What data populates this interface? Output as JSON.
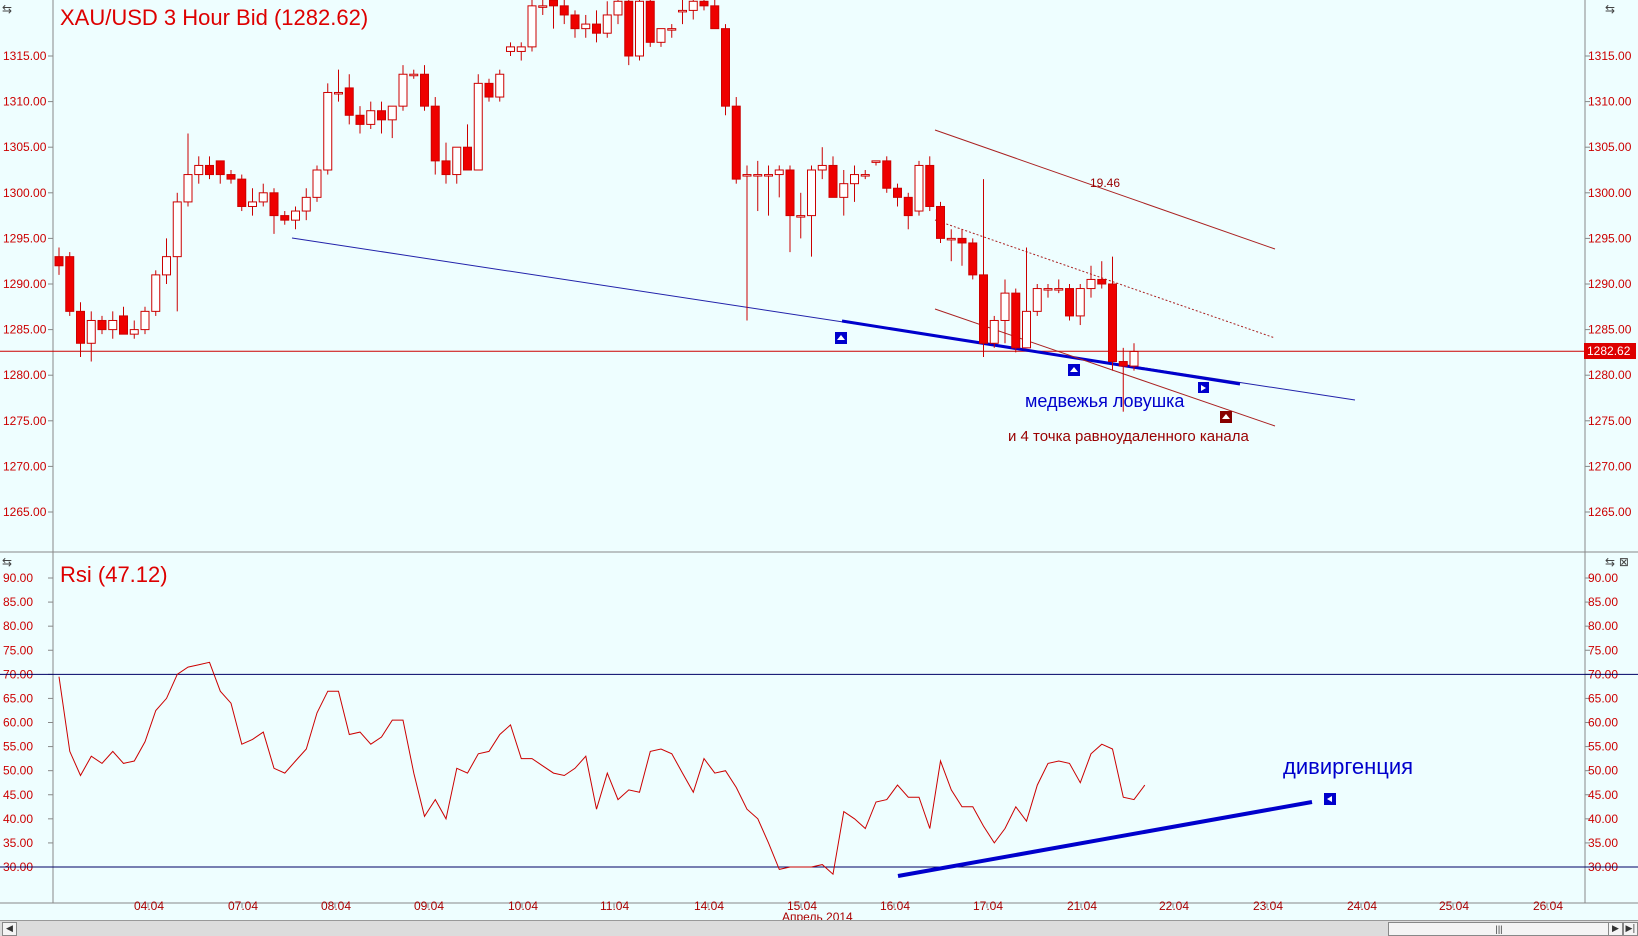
{
  "price_panel": {
    "title": "XAU/USD 3 Hour Bid (1282.62)",
    "current_price_label": "1282.62",
    "y_ticks": [
      "1315.00",
      "1310.00",
      "1305.00",
      "1300.00",
      "1295.00",
      "1290.00",
      "1285.00",
      "1280.00",
      "1275.00",
      "1270.00",
      "1265.00"
    ],
    "annotation_bear_trap": "медвежья ловушка",
    "annotation_channel": "и 4 точка равноудаленного канала",
    "annotation_width": "19.46"
  },
  "rsi_panel": {
    "title": "Rsi (47.12)",
    "y_ticks": [
      "90.00",
      "85.00",
      "80.00",
      "75.00",
      "70.00",
      "65.00",
      "60.00",
      "55.00",
      "50.00",
      "45.00",
      "40.00",
      "35.00",
      "30.00"
    ],
    "annotation_divergence": "дивиргенция"
  },
  "x_axis": {
    "dates": [
      "04.04",
      "07.04",
      "08.04",
      "09.04",
      "10.04",
      "11.04",
      "14.04",
      "15.04",
      "16.04",
      "17.04",
      "21.04",
      "22.04",
      "23.04",
      "24.04",
      "25.04",
      "26.04"
    ],
    "month_label": "Апрель 2014"
  },
  "colors": {
    "background": "#eefeff",
    "bear_candle": "#ee0000",
    "bull_candle": "#ffffff",
    "candle_outline": "#cc0000",
    "rsi_line": "#cc0000",
    "trend_blue": "#0000cc",
    "channel": "#aa2222"
  },
  "chart_data": [
    {
      "type": "candlestick",
      "title": "XAU/USD 3 Hour Bid (1282.62)",
      "ylim": [
        1261,
        1322
      ],
      "current_price": 1282.62,
      "candles": [
        {
          "o": 1293.0,
          "h": 1294.0,
          "l": 1291.0,
          "c": 1292.0
        },
        {
          "o": 1293.0,
          "h": 1293.5,
          "l": 1286.5,
          "c": 1287.0
        },
        {
          "o": 1287.0,
          "h": 1288.0,
          "l": 1282.0,
          "c": 1283.5
        },
        {
          "o": 1283.5,
          "h": 1287.0,
          "l": 1281.5,
          "c": 1286.0
        },
        {
          "o": 1286.0,
          "h": 1286.5,
          "l": 1284.5,
          "c": 1285.0
        },
        {
          "o": 1285.0,
          "h": 1287.0,
          "l": 1284.0,
          "c": 1286.0
        },
        {
          "o": 1286.5,
          "h": 1287.5,
          "l": 1284.5,
          "c": 1284.5
        },
        {
          "o": 1284.5,
          "h": 1286.0,
          "l": 1284.0,
          "c": 1285.0
        },
        {
          "o": 1285.0,
          "h": 1287.5,
          "l": 1284.5,
          "c": 1287.0
        },
        {
          "o": 1287.0,
          "h": 1291.5,
          "l": 1286.5,
          "c": 1291.0
        },
        {
          "o": 1291.0,
          "h": 1295.0,
          "l": 1290.0,
          "c": 1293.0
        },
        {
          "o": 1293.0,
          "h": 1300.0,
          "l": 1287.0,
          "c": 1299.0
        },
        {
          "o": 1299.0,
          "h": 1306.5,
          "l": 1298.5,
          "c": 1302.0
        },
        {
          "o": 1302.0,
          "h": 1304.0,
          "l": 1301.0,
          "c": 1303.0
        },
        {
          "o": 1303.0,
          "h": 1304.0,
          "l": 1301.5,
          "c": 1302.0
        },
        {
          "o": 1303.5,
          "h": 1303.5,
          "l": 1301.0,
          "c": 1302.0
        },
        {
          "o": 1302.0,
          "h": 1302.5,
          "l": 1301.0,
          "c": 1301.5
        },
        {
          "o": 1301.5,
          "h": 1302.0,
          "l": 1298.0,
          "c": 1298.5
        },
        {
          "o": 1298.5,
          "h": 1300.5,
          "l": 1297.5,
          "c": 1299.0
        },
        {
          "o": 1299.0,
          "h": 1301.0,
          "l": 1298.5,
          "c": 1300.0
        },
        {
          "o": 1300.0,
          "h": 1300.5,
          "l": 1295.5,
          "c": 1297.5
        },
        {
          "o": 1297.5,
          "h": 1298.0,
          "l": 1296.5,
          "c": 1297.0
        },
        {
          "o": 1297.0,
          "h": 1298.5,
          "l": 1296.0,
          "c": 1298.0
        },
        {
          "o": 1298.0,
          "h": 1300.5,
          "l": 1297.0,
          "c": 1299.5
        },
        {
          "o": 1299.5,
          "h": 1303.0,
          "l": 1299.0,
          "c": 1302.5
        },
        {
          "o": 1302.5,
          "h": 1312.0,
          "l": 1302.0,
          "c": 1311.0
        },
        {
          "o": 1311.0,
          "h": 1313.5,
          "l": 1310.0,
          "c": 1311.0
        },
        {
          "o": 1311.5,
          "h": 1313.0,
          "l": 1307.5,
          "c": 1308.5
        },
        {
          "o": 1308.5,
          "h": 1309.5,
          "l": 1306.5,
          "c": 1307.5
        },
        {
          "o": 1307.5,
          "h": 1310.0,
          "l": 1307.0,
          "c": 1309.0
        },
        {
          "o": 1309.0,
          "h": 1310.0,
          "l": 1306.5,
          "c": 1308.0
        },
        {
          "o": 1308.0,
          "h": 1309.5,
          "l": 1306.0,
          "c": 1309.5
        },
        {
          "o": 1309.5,
          "h": 1314.0,
          "l": 1309.0,
          "c": 1313.0
        },
        {
          "o": 1313.0,
          "h": 1313.5,
          "l": 1312.5,
          "c": 1313.0
        },
        {
          "o": 1313.0,
          "h": 1314.0,
          "l": 1309.0,
          "c": 1309.5
        },
        {
          "o": 1309.5,
          "h": 1310.5,
          "l": 1302.0,
          "c": 1303.5
        },
        {
          "o": 1303.5,
          "h": 1305.5,
          "l": 1301.0,
          "c": 1302.0
        },
        {
          "o": 1302.0,
          "h": 1305.0,
          "l": 1301.0,
          "c": 1305.0
        },
        {
          "o": 1305.0,
          "h": 1307.5,
          "l": 1302.5,
          "c": 1302.5
        },
        {
          "o": 1302.5,
          "h": 1313.0,
          "l": 1302.5,
          "c": 1312.0
        },
        {
          "o": 1312.0,
          "h": 1312.5,
          "l": 1310.0,
          "c": 1310.5
        },
        {
          "o": 1310.5,
          "h": 1313.5,
          "l": 1310.0,
          "c": 1313.0
        },
        {
          "o": 1315.5,
          "h": 1316.5,
          "l": 1315.0,
          "c": 1316.0
        },
        {
          "o": 1315.5,
          "h": 1316.5,
          "l": 1314.5,
          "c": 1316.0
        },
        {
          "o": 1316.0,
          "h": 1322.0,
          "l": 1315.5,
          "c": 1320.5
        },
        {
          "o": 1320.5,
          "h": 1322.0,
          "l": 1319.5,
          "c": 1320.5
        },
        {
          "o": 1321.5,
          "h": 1322.0,
          "l": 1318.0,
          "c": 1320.5
        },
        {
          "o": 1320.5,
          "h": 1322.0,
          "l": 1318.5,
          "c": 1319.5
        },
        {
          "o": 1319.5,
          "h": 1320.0,
          "l": 1317.0,
          "c": 1318.0
        },
        {
          "o": 1318.0,
          "h": 1319.5,
          "l": 1317.0,
          "c": 1318.5
        },
        {
          "o": 1318.5,
          "h": 1320.0,
          "l": 1316.5,
          "c": 1317.5
        },
        {
          "o": 1317.5,
          "h": 1321.0,
          "l": 1317.0,
          "c": 1319.5
        },
        {
          "o": 1319.5,
          "h": 1322.0,
          "l": 1318.5,
          "c": 1321.0
        },
        {
          "o": 1321.0,
          "h": 1322.0,
          "l": 1314.0,
          "c": 1315.0
        },
        {
          "o": 1315.0,
          "h": 1322.0,
          "l": 1314.5,
          "c": 1321.0
        },
        {
          "o": 1321.0,
          "h": 1322.0,
          "l": 1316.0,
          "c": 1316.5
        },
        {
          "o": 1316.5,
          "h": 1318.0,
          "l": 1316.0,
          "c": 1318.0
        },
        {
          "o": 1318.0,
          "h": 1318.5,
          "l": 1317.0,
          "c": 1318.0
        },
        {
          "o": 1320.0,
          "h": 1322.0,
          "l": 1318.5,
          "c": 1320.0
        },
        {
          "o": 1320.0,
          "h": 1322.0,
          "l": 1319.0,
          "c": 1321.0
        },
        {
          "o": 1321.0,
          "h": 1322.0,
          "l": 1320.0,
          "c": 1320.5
        },
        {
          "o": 1320.5,
          "h": 1321.5,
          "l": 1318.0,
          "c": 1318.0
        },
        {
          "o": 1318.0,
          "h": 1318.5,
          "l": 1308.5,
          "c": 1309.5
        },
        {
          "o": 1309.5,
          "h": 1310.5,
          "l": 1301.0,
          "c": 1301.5
        },
        {
          "o": 1302.0,
          "h": 1303.0,
          "l": 1286.0,
          "c": 1302.0
        },
        {
          "o": 1302.0,
          "h": 1303.5,
          "l": 1298.0,
          "c": 1302.0
        },
        {
          "o": 1302.0,
          "h": 1303.0,
          "l": 1297.5,
          "c": 1302.0
        },
        {
          "o": 1302.0,
          "h": 1303.0,
          "l": 1299.5,
          "c": 1302.5
        },
        {
          "o": 1302.5,
          "h": 1303.0,
          "l": 1293.5,
          "c": 1297.5
        },
        {
          "o": 1297.5,
          "h": 1300.0,
          "l": 1295.0,
          "c": 1297.5
        },
        {
          "o": 1297.5,
          "h": 1303.0,
          "l": 1293.0,
          "c": 1302.5
        },
        {
          "o": 1302.5,
          "h": 1305.0,
          "l": 1301.5,
          "c": 1303.0
        },
        {
          "o": 1303.0,
          "h": 1304.0,
          "l": 1299.5,
          "c": 1299.5
        },
        {
          "o": 1299.5,
          "h": 1302.5,
          "l": 1297.5,
          "c": 1301.0
        },
        {
          "o": 1301.0,
          "h": 1303.0,
          "l": 1299.0,
          "c": 1302.0
        },
        {
          "o": 1302.0,
          "h": 1302.5,
          "l": 1301.5,
          "c": 1302.0
        },
        {
          "o": 1303.5,
          "h": 1303.5,
          "l": 1303.0,
          "c": 1303.5
        },
        {
          "o": 1303.5,
          "h": 1304.0,
          "l": 1300.0,
          "c": 1300.5
        },
        {
          "o": 1300.5,
          "h": 1301.0,
          "l": 1298.5,
          "c": 1299.5
        },
        {
          "o": 1299.5,
          "h": 1300.0,
          "l": 1296.0,
          "c": 1297.5
        },
        {
          "o": 1298.0,
          "h": 1303.5,
          "l": 1297.5,
          "c": 1303.0
        },
        {
          "o": 1303.0,
          "h": 1304.0,
          "l": 1298.0,
          "c": 1298.5
        },
        {
          "o": 1298.5,
          "h": 1299.0,
          "l": 1294.5,
          "c": 1295.0
        },
        {
          "o": 1295.0,
          "h": 1296.0,
          "l": 1292.5,
          "c": 1295.0
        },
        {
          "o": 1295.0,
          "h": 1296.0,
          "l": 1292.0,
          "c": 1294.5
        },
        {
          "o": 1294.5,
          "h": 1295.0,
          "l": 1290.5,
          "c": 1291.0
        },
        {
          "o": 1291.0,
          "h": 1301.5,
          "l": 1282.0,
          "c": 1283.5
        },
        {
          "o": 1283.5,
          "h": 1286.5,
          "l": 1283.0,
          "c": 1286.0
        },
        {
          "o": 1286.0,
          "h": 1290.5,
          "l": 1283.5,
          "c": 1289.0
        },
        {
          "o": 1289.0,
          "h": 1289.5,
          "l": 1282.5,
          "c": 1283.0
        },
        {
          "o": 1283.0,
          "h": 1294.0,
          "l": 1283.0,
          "c": 1287.0
        },
        {
          "o": 1287.0,
          "h": 1290.0,
          "l": 1286.5,
          "c": 1289.5
        },
        {
          "o": 1289.5,
          "h": 1290.0,
          "l": 1288.5,
          "c": 1289.5
        },
        {
          "o": 1289.5,
          "h": 1290.5,
          "l": 1289.0,
          "c": 1289.5
        },
        {
          "o": 1289.5,
          "h": 1290.0,
          "l": 1286.0,
          "c": 1286.5
        },
        {
          "o": 1286.5,
          "h": 1290.0,
          "l": 1285.5,
          "c": 1289.5
        },
        {
          "o": 1289.5,
          "h": 1292.0,
          "l": 1288.5,
          "c": 1290.5
        },
        {
          "o": 1290.5,
          "h": 1292.5,
          "l": 1289.5,
          "c": 1290.0
        },
        {
          "o": 1290.0,
          "h": 1293.0,
          "l": 1280.5,
          "c": 1281.5
        },
        {
          "o": 1281.5,
          "h": 1283.0,
          "l": 1276.0,
          "c": 1281.0
        },
        {
          "o": 1281.0,
          "h": 1283.5,
          "l": 1280.5,
          "c": 1282.6
        }
      ]
    },
    {
      "type": "line",
      "title": "Rsi (47.12)",
      "ylim": [
        26,
        92
      ],
      "hlines": [
        70,
        30
      ],
      "values": [
        69.5,
        54.0,
        49.0,
        53.0,
        51.5,
        54.0,
        51.5,
        52.0,
        56.0,
        62.5,
        65.0,
        70.0,
        71.5,
        72.0,
        72.5,
        66.5,
        64.0,
        55.5,
        56.5,
        58.0,
        50.5,
        49.5,
        52.0,
        54.5,
        62.0,
        66.5,
        66.5,
        57.5,
        58.0,
        55.5,
        57.0,
        60.5,
        60.5,
        49.5,
        40.5,
        44.0,
        40.0,
        50.5,
        49.5,
        53.5,
        54.0,
        57.5,
        59.5,
        52.5,
        52.5,
        51.0,
        49.5,
        49.0,
        50.5,
        53.0,
        42.0,
        49.5,
        44.0,
        46.0,
        45.5,
        54.0,
        54.5,
        53.5,
        49.5,
        45.5,
        52.5,
        49.5,
        50.0,
        46.5,
        42.0,
        40.0,
        35.0,
        29.5,
        30.0,
        30.0,
        30.0,
        30.5,
        28.5,
        41.5,
        40.0,
        38.0,
        43.5,
        44.0,
        47.0,
        44.5,
        44.5,
        38.0,
        52.0,
        46.0,
        42.5,
        42.5,
        38.5,
        35.0,
        38.0,
        42.5,
        39.5,
        47.0,
        51.5,
        52.0,
        51.5,
        47.5,
        53.5,
        55.5,
        54.5,
        44.5,
        44.0,
        47.0
      ]
    }
  ]
}
